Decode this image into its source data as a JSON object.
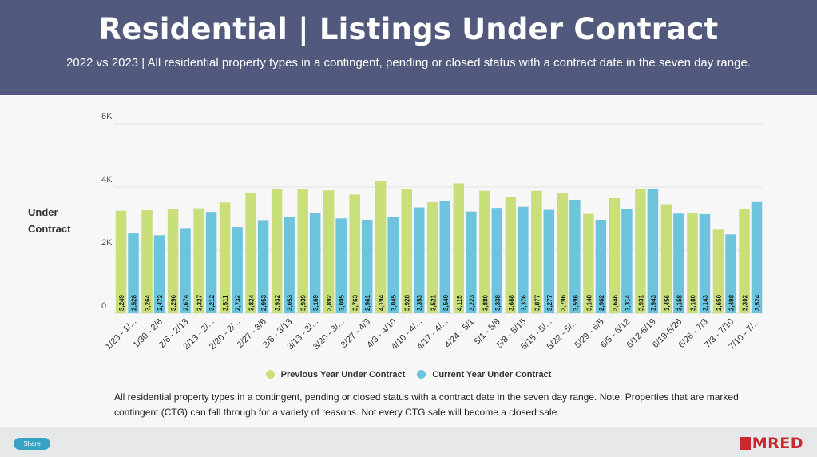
{
  "header": {
    "title": "Residential | Listings Under Contract",
    "subtitle": "2022 vs 2023 | All residential property types in a contingent, pending or closed status with a contract date in the seven day range."
  },
  "colors": {
    "header_bg": "#515a7d",
    "previous": "#c9df7a",
    "current": "#6cc5dd",
    "brand": "#c8282e"
  },
  "chart_data": {
    "type": "bar",
    "title": "",
    "xlabel": "",
    "ylabel": "Under Contract",
    "ylim": [
      0,
      6000
    ],
    "yticks": [
      {
        "value": 0,
        "label": "0"
      },
      {
        "value": 2000,
        "label": "2K"
      },
      {
        "value": 4000,
        "label": "4K"
      },
      {
        "value": 6000,
        "label": "6K"
      }
    ],
    "grid": true,
    "legend": "bottom",
    "categories": [
      "1/23 - 1/...",
      "1/30 - 2/6",
      "2/6 - 2/13",
      "2/13 - 2/...",
      "2/20 - 2/...",
      "2/27 - 3/6",
      "3/6 - 3/13",
      "3/13 - 3/...",
      "3/20 - 3/...",
      "3/27 - 4/3",
      "4/3 - 4/10",
      "4/10 - 4/...",
      "4/17 - 4/...",
      "4/24 - 5/1",
      "5/1 - 5/8",
      "5/8 - 5/15",
      "5/15 - 5/...",
      "5/22 - 5/...",
      "5/29 - 6/5",
      "6/5 - 6/12",
      "6/12-6/19",
      "6/19-6/26",
      "6/26 - 7/3",
      "7/3 - 7/10",
      "7/10 - 7/..."
    ],
    "series": [
      {
        "name": "Previous Year Under Contract",
        "values": [
          3249,
          3264,
          3296,
          3327,
          3511,
          3824,
          3932,
          3939,
          3892,
          3763,
          4194,
          3928,
          3521,
          4115,
          3880,
          3688,
          3877,
          3796,
          3148,
          3646,
          3931,
          3456,
          3180,
          2650,
          3302
        ],
        "labels": [
          "3,249",
          "3,264",
          "3,296",
          "3,327",
          "3,511",
          "3,824",
          "3,932",
          "3,939",
          "3,892",
          "3,763",
          "4,194",
          "3,928",
          "3,521",
          "4,115",
          "3,880",
          "3,688",
          "3,877",
          "3,796",
          "3,148",
          "3,646",
          "3,931",
          "3,456",
          "3,180",
          "2,650",
          "3,302"
        ]
      },
      {
        "name": "Current Year Under Contract",
        "values": [
          2528,
          2472,
          2674,
          3212,
          2732,
          2953,
          3053,
          3169,
          3005,
          2961,
          3045,
          3353,
          3549,
          3223,
          3338,
          3376,
          3277,
          3596,
          2962,
          3314,
          3943,
          3158,
          3143,
          2498,
          3524
        ],
        "labels": [
          "2,528",
          "2,472",
          "2,674",
          "3,212",
          "2,732",
          "2,953",
          "3,053",
          "3,169",
          "3,005",
          "2,961",
          "3,045",
          "3,353",
          "3,549",
          "3,223",
          "3,338",
          "3,376",
          "3,277",
          "3,596",
          "2,962",
          "3,314",
          "3,943",
          "3,158",
          "3,143",
          "2,498",
          "3,524"
        ]
      }
    ]
  },
  "legend": {
    "previous": "Previous Year Under Contract",
    "current": "Current Year Under Contract"
  },
  "note": "All residential property types in a contingent, pending or closed status with a contract date in the seven day range. Note: Properties that are marked contingent (CTG) can fall through for a variety of reasons. Not every CTG sale will become a closed sale.",
  "footer": {
    "share_label": "Share",
    "logo_text": "MRED"
  }
}
